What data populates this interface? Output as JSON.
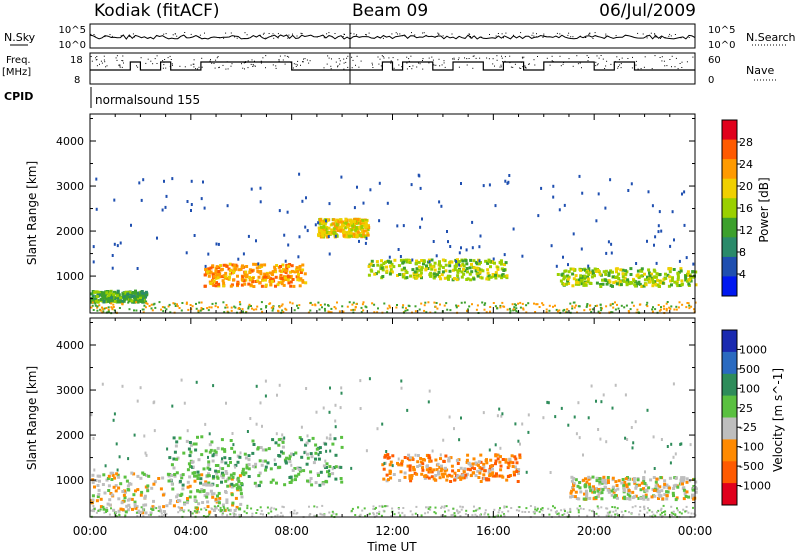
{
  "header": {
    "station": "Kodiak (fitACF)",
    "beam": "Beam 09",
    "date": "06/Jul/2009"
  },
  "strip_labels": {
    "nsky": "N.Sky",
    "nsky_ticks": [
      "10^5",
      "10^0"
    ],
    "nsearch": "N.Search",
    "nsearch_ticks": [
      "10^5",
      "10^0"
    ],
    "freq_line1": "Freq.",
    "freq_line2": "[MHz]",
    "freq_ticks": [
      "18",
      "8"
    ],
    "nave": "Nave",
    "nave_ticks": [
      "60",
      "0"
    ],
    "cpid": "CPID",
    "cpid_value": "normalsound 155"
  },
  "chart_data": [
    {
      "type": "heatmap",
      "name": "power-panel",
      "ylabel": "Slant Range [km]",
      "xlabel": "Time UT",
      "x_ticks": [
        "00:00",
        "04:00",
        "08:00",
        "12:00",
        "16:00",
        "20:00",
        "00:00"
      ],
      "xlim_hours": [
        0,
        24
      ],
      "ylim": [
        180,
        4600
      ],
      "y_ticks": [
        1000,
        2000,
        3000,
        4000
      ],
      "colorbar_label": "Power [dB]",
      "colorbar_ticks": [
        "28",
        "24",
        "20",
        "16",
        "12",
        "8",
        "4"
      ],
      "colorbar_colors": [
        "#e0001c",
        "#ff5a00",
        "#ff9a00",
        "#f0d000",
        "#9ad000",
        "#3ca02c",
        "#2a8a6a",
        "#1f4fb0",
        "#0018f0"
      ],
      "echo_regions": [
        {
          "t0": 0.0,
          "t1": 2.2,
          "r0": 450,
          "r1": 700,
          "color_idx": 5
        },
        {
          "t0": 4.5,
          "t1": 8.5,
          "r0": 800,
          "r1": 1300,
          "color_idx": 2
        },
        {
          "t0": 9.0,
          "t1": 11.0,
          "r0": 1900,
          "r1": 2300,
          "color_idx": 3
        },
        {
          "t0": 11.0,
          "t1": 16.5,
          "r0": 950,
          "r1": 1400,
          "color_idx": 4
        },
        {
          "t0": 18.5,
          "t1": 24.0,
          "r0": 800,
          "r1": 1200,
          "color_idx": 4
        }
      ]
    },
    {
      "type": "heatmap",
      "name": "velocity-panel",
      "ylabel": "Slant Range [km]",
      "xlabel": "Time UT",
      "x_ticks": [
        "00:00",
        "04:00",
        "08:00",
        "12:00",
        "16:00",
        "20:00",
        "00:00"
      ],
      "xlim_hours": [
        0,
        24
      ],
      "ylim": [
        180,
        4600
      ],
      "y_ticks": [
        1000,
        2000,
        3000,
        4000
      ],
      "colorbar_label": "Velocity [m s^-1]",
      "colorbar_ticks": [
        "1000",
        "500",
        "100",
        "25",
        "-25",
        "-100",
        "-500",
        "-1000"
      ],
      "colorbar_colors": [
        "#1a2ab0",
        "#2a6ac0",
        "#2e8c5a",
        "#5ac040",
        "#bebebe",
        "#ff8a00",
        "#ff5a00",
        "#e0001c"
      ],
      "echo_regions": [
        {
          "t0": 0.0,
          "t1": 6.0,
          "r0": 300,
          "r1": 1200,
          "color_idx": 4
        },
        {
          "t0": 3.0,
          "t1": 10.0,
          "r0": 900,
          "r1": 2000,
          "color_idx": 3
        },
        {
          "t0": 11.5,
          "t1": 17.0,
          "r0": 1000,
          "r1": 1600,
          "color_idx": 5
        },
        {
          "t0": 19.0,
          "t1": 24.0,
          "r0": 600,
          "r1": 1100,
          "color_idx": 4
        }
      ]
    }
  ]
}
